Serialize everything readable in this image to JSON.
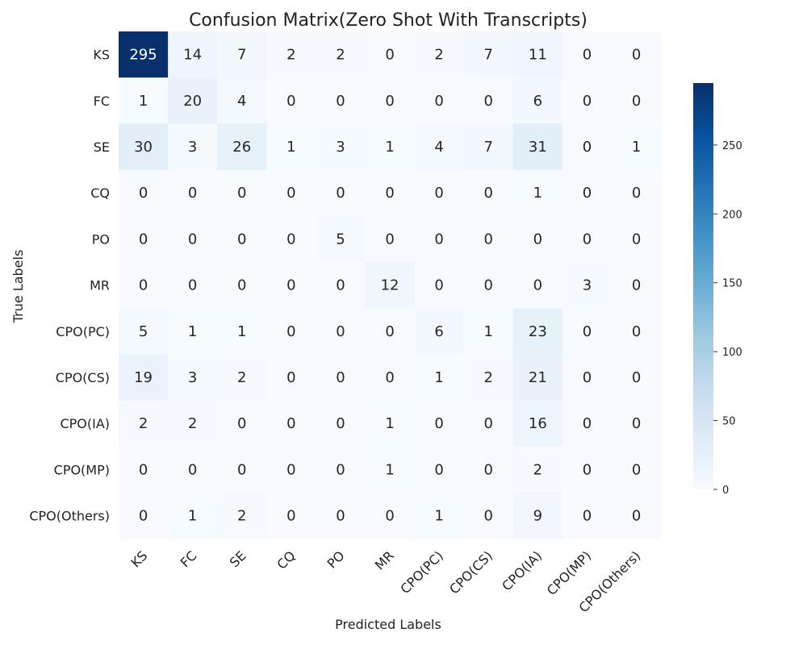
{
  "chart_data": {
    "type": "heatmap",
    "title": "Confusion Matrix(Zero Shot With Transcripts)",
    "xlabel": "Predicted Labels",
    "ylabel": "True Labels",
    "x_categories": [
      "KS",
      "FC",
      "SE",
      "CQ",
      "PO",
      "MR",
      "CPO(PC)",
      "CPO(CS)",
      "CPO(IA)",
      "CPO(MP)",
      "CPO(Others)"
    ],
    "y_categories": [
      "KS",
      "FC",
      "SE",
      "CQ",
      "PO",
      "MR",
      "CPO(PC)",
      "CPO(CS)",
      "CPO(IA)",
      "CPO(MP)",
      "CPO(Others)"
    ],
    "values": [
      [
        295,
        14,
        7,
        2,
        2,
        0,
        2,
        7,
        11,
        0,
        0
      ],
      [
        1,
        20,
        4,
        0,
        0,
        0,
        0,
        0,
        6,
        0,
        0
      ],
      [
        30,
        3,
        26,
        1,
        3,
        1,
        4,
        7,
        31,
        0,
        1
      ],
      [
        0,
        0,
        0,
        0,
        0,
        0,
        0,
        0,
        1,
        0,
        0
      ],
      [
        0,
        0,
        0,
        0,
        5,
        0,
        0,
        0,
        0,
        0,
        0
      ],
      [
        0,
        0,
        0,
        0,
        0,
        12,
        0,
        0,
        0,
        3,
        0
      ],
      [
        5,
        1,
        1,
        0,
        0,
        0,
        6,
        1,
        23,
        0,
        0
      ],
      [
        19,
        3,
        2,
        0,
        0,
        0,
        1,
        2,
        21,
        0,
        0
      ],
      [
        2,
        2,
        0,
        0,
        0,
        1,
        0,
        0,
        16,
        0,
        0
      ],
      [
        0,
        0,
        0,
        0,
        0,
        1,
        0,
        0,
        2,
        0,
        0
      ],
      [
        0,
        1,
        2,
        0,
        0,
        0,
        1,
        0,
        9,
        0,
        0
      ]
    ],
    "colormap": "Blues",
    "vmin": 0,
    "vmax": 295,
    "colorbar_ticks": [
      0,
      50,
      100,
      150,
      200,
      250
    ],
    "grid": false
  }
}
